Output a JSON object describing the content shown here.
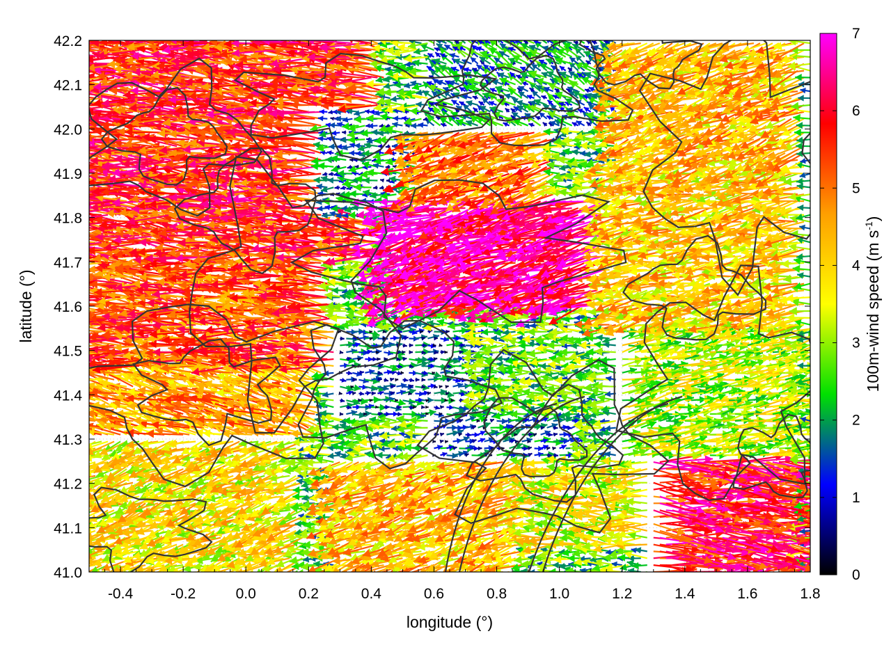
{
  "chart_data": {
    "type": "vector-field",
    "xlabel": "longitude (°)",
    "ylabel": "latitude (°)",
    "xlim": [
      -0.5,
      1.8
    ],
    "ylim": [
      41.0,
      42.2
    ],
    "x_ticks": [
      "-0.4",
      "-0.2",
      "0.0",
      "0.2",
      "0.4",
      "0.6",
      "0.8",
      "1.0",
      "1.2",
      "1.4",
      "1.6",
      "1.8"
    ],
    "x_tick_values": [
      -0.4,
      -0.2,
      0.0,
      0.2,
      0.4,
      0.6,
      0.8,
      1.0,
      1.2,
      1.4,
      1.6,
      1.8
    ],
    "y_ticks": [
      "41.0",
      "41.1",
      "41.2",
      "41.3",
      "41.4",
      "41.5",
      "41.6",
      "41.7",
      "41.8",
      "41.9",
      "42.0",
      "42.1",
      "42.2"
    ],
    "y_tick_values": [
      41.0,
      41.1,
      41.2,
      41.3,
      41.4,
      41.5,
      41.6,
      41.7,
      41.8,
      41.9,
      42.0,
      42.1,
      42.2
    ],
    "grid": true,
    "colorbar": {
      "label_main": "100m-wind speed (m s",
      "label_sup": "-1",
      "label_end": ")",
      "ticks": [
        "0",
        "1",
        "2",
        "3",
        "4",
        "5",
        "6",
        "7"
      ],
      "tick_values": [
        0,
        1,
        2,
        3,
        4,
        5,
        6,
        7
      ],
      "range": [
        0,
        7
      ],
      "palette": [
        "#000000",
        "#0000ff",
        "#00e000",
        "#ffff00",
        "#ff9f00",
        "#ff0000",
        "#ff00ff"
      ]
    },
    "contour_color": "#333333",
    "wind_regions": [
      {
        "lon": [
          -0.5,
          0.45
        ],
        "lat": [
          41.7,
          42.2
        ],
        "speed": 5.6,
        "dir_deg": 175
      },
      {
        "lon": [
          -0.5,
          0.3
        ],
        "lat": [
          41.45,
          41.7
        ],
        "speed": 5.2,
        "dir_deg": 175
      },
      {
        "lon": [
          -0.5,
          0.25
        ],
        "lat": [
          41.3,
          41.45
        ],
        "speed": 4.5,
        "dir_deg": 165
      },
      {
        "lon": [
          -0.5,
          0.2
        ],
        "lat": [
          41.0,
          41.3
        ],
        "speed": 3.8,
        "dir_deg": 200
      },
      {
        "lon": [
          0.25,
          0.6
        ],
        "lat": [
          41.8,
          42.05
        ],
        "speed": 1.5,
        "dir_deg": 180
      },
      {
        "lon": [
          0.3,
          0.75
        ],
        "lat": [
          41.35,
          41.55
        ],
        "speed": 1.2,
        "dir_deg": 0
      },
      {
        "lon": [
          0.5,
          1.15
        ],
        "lat": [
          41.6,
          41.85
        ],
        "speed": 6.5,
        "dir_deg": 195
      },
      {
        "lon": [
          0.55,
          1.0
        ],
        "lat": [
          41.85,
          42.0
        ],
        "speed": 4.8,
        "dir_deg": 200
      },
      {
        "lon": [
          0.6,
          1.2
        ],
        "lat": [
          42.0,
          42.2
        ],
        "speed": 1.8,
        "dir_deg": 150
      },
      {
        "lon": [
          0.6,
          1.1
        ],
        "lat": [
          41.25,
          41.35
        ],
        "speed": 1.3,
        "dir_deg": 10
      },
      {
        "lon": [
          0.3,
          0.9
        ],
        "lat": [
          41.0,
          41.25
        ],
        "speed": 4.2,
        "dir_deg": 200
      },
      {
        "lon": [
          0.9,
          1.3
        ],
        "lat": [
          41.05,
          41.25
        ],
        "speed": 3.5,
        "dir_deg": 180
      },
      {
        "lon": [
          1.3,
          1.8
        ],
        "lat": [
          41.0,
          41.25
        ],
        "speed": 5.8,
        "dir_deg": 355
      },
      {
        "lon": [
          1.2,
          1.8
        ],
        "lat": [
          41.25,
          41.55
        ],
        "speed": 3.2,
        "dir_deg": 10
      },
      {
        "lon": [
          1.15,
          1.8
        ],
        "lat": [
          41.55,
          41.9
        ],
        "speed": 4.0,
        "dir_deg": 190
      },
      {
        "lon": [
          1.2,
          1.8
        ],
        "lat": [
          41.9,
          42.2
        ],
        "speed": 4.2,
        "dir_deg": 200
      }
    ]
  }
}
